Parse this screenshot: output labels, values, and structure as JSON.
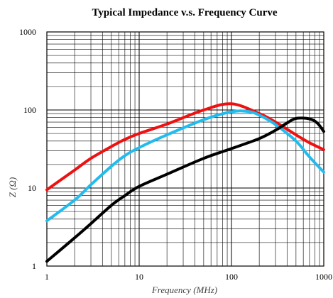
{
  "chart_data": {
    "type": "line",
    "title": "Typical Impedance v.s. Frequency Curve",
    "xlabel": "Frequency (MHz)",
    "ylabel": "Z (Ω)",
    "xscale": "log",
    "yscale": "log",
    "xlim": [
      1,
      1000
    ],
    "ylim": [
      1,
      1000
    ],
    "grid": true,
    "xticks": [
      1,
      10,
      100,
      1000
    ],
    "xtick_labels": [
      "1",
      "10",
      "100",
      "1000"
    ],
    "yticks": [
      1,
      10,
      100,
      1000
    ],
    "ytick_labels": [
      "1",
      "10",
      "100",
      "1000"
    ],
    "series": [
      {
        "color": "#ee1111",
        "x": [
          1,
          2,
          3,
          5,
          7,
          10,
          20,
          50,
          100,
          200,
          300,
          500,
          700,
          1000
        ],
        "y": [
          9.5,
          17,
          24,
          34,
          42,
          50,
          66,
          100,
          120,
          90,
          70,
          48,
          38,
          31
        ]
      },
      {
        "color": "#22bbee",
        "x": [
          1,
          2,
          3,
          5,
          7,
          10,
          20,
          50,
          100,
          150,
          200,
          300,
          500,
          700,
          1000
        ],
        "y": [
          3.8,
          7,
          11,
          19,
          26,
          33,
          48,
          75,
          95,
          96,
          86,
          65,
          40,
          25,
          16
        ]
      },
      {
        "color": "#000000",
        "x": [
          1,
          2,
          3,
          5,
          7,
          10,
          20,
          50,
          100,
          200,
          300,
          400,
          500,
          700,
          850,
          1000
        ],
        "y": [
          1.15,
          2.3,
          3.5,
          6,
          8,
          10.5,
          15,
          24,
          32,
          43,
          55,
          68,
          78,
          77,
          68,
          53
        ]
      }
    ]
  }
}
